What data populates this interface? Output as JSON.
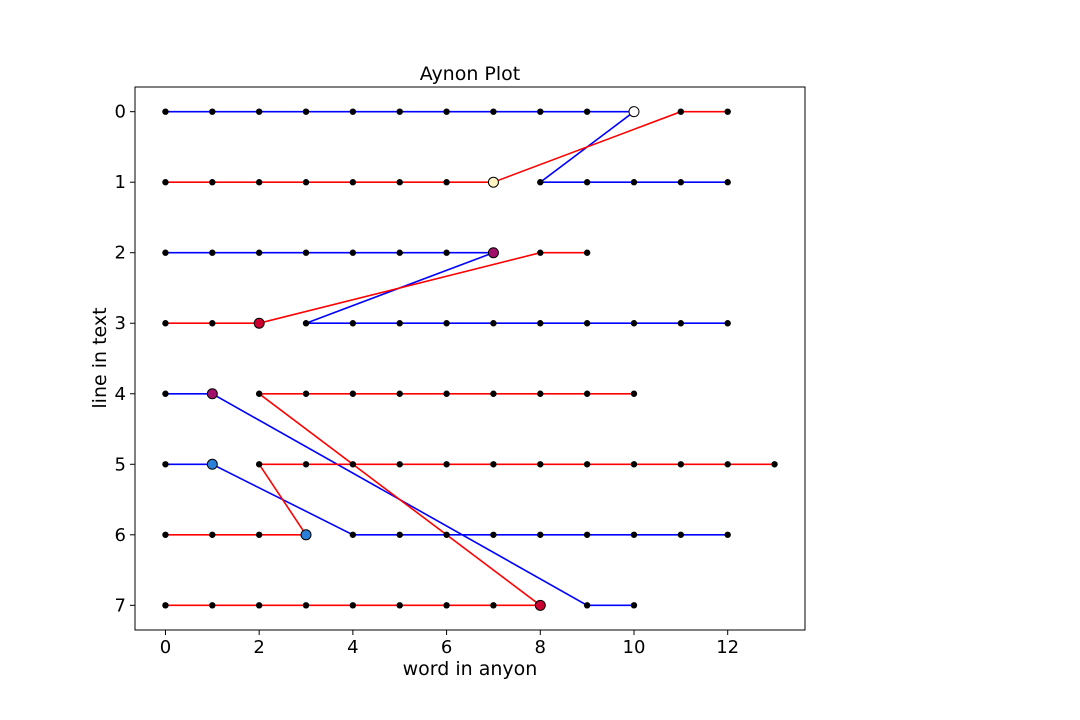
{
  "chart_data": {
    "type": "line",
    "title": "Aynon Plot",
    "xlabel": "word in anyon",
    "ylabel": "line in text",
    "xlim": [
      -0.65,
      13.65
    ],
    "ylim": [
      7.35,
      -0.35
    ],
    "y_inverted": true,
    "xticks": [
      0,
      2,
      4,
      6,
      8,
      10,
      12
    ],
    "yticks": [
      0,
      1,
      2,
      3,
      4,
      5,
      6,
      7
    ],
    "grid": false,
    "colors": {
      "blue": "#0000ff",
      "red": "#ff0000",
      "point": "#000000"
    },
    "series": [
      {
        "color": "blue",
        "points": [
          [
            0,
            0
          ],
          [
            1,
            0
          ],
          [
            2,
            0
          ],
          [
            3,
            0
          ],
          [
            4,
            0
          ],
          [
            5,
            0
          ],
          [
            6,
            0
          ],
          [
            7,
            0
          ],
          [
            8,
            0
          ],
          [
            9,
            0
          ],
          [
            10,
            0
          ],
          [
            8,
            1
          ],
          [
            9,
            1
          ],
          [
            10,
            1
          ],
          [
            11,
            1
          ],
          [
            12,
            1
          ]
        ]
      },
      {
        "color": "red",
        "points": [
          [
            0,
            1
          ],
          [
            1,
            1
          ],
          [
            2,
            1
          ],
          [
            3,
            1
          ],
          [
            4,
            1
          ],
          [
            5,
            1
          ],
          [
            6,
            1
          ],
          [
            7,
            1
          ],
          [
            11,
            0
          ],
          [
            12,
            0
          ]
        ]
      },
      {
        "color": "blue",
        "points": [
          [
            0,
            2
          ],
          [
            1,
            2
          ],
          [
            2,
            2
          ],
          [
            3,
            2
          ],
          [
            4,
            2
          ],
          [
            5,
            2
          ],
          [
            6,
            2
          ],
          [
            7,
            2
          ],
          [
            3,
            3
          ],
          [
            4,
            3
          ],
          [
            5,
            3
          ],
          [
            6,
            3
          ],
          [
            7,
            3
          ],
          [
            8,
            3
          ],
          [
            9,
            3
          ],
          [
            10,
            3
          ],
          [
            11,
            3
          ],
          [
            12,
            3
          ]
        ]
      },
      {
        "color": "red",
        "points": [
          [
            0,
            3
          ],
          [
            1,
            3
          ],
          [
            2,
            3
          ],
          [
            8,
            2
          ],
          [
            9,
            2
          ]
        ]
      },
      {
        "color": "blue",
        "points": [
          [
            0,
            4
          ],
          [
            1,
            4
          ],
          [
            9,
            7
          ],
          [
            10,
            7
          ]
        ]
      },
      {
        "color": "red",
        "points": [
          [
            0,
            7
          ],
          [
            1,
            7
          ],
          [
            2,
            7
          ],
          [
            3,
            7
          ],
          [
            4,
            7
          ],
          [
            5,
            7
          ],
          [
            6,
            7
          ],
          [
            7,
            7
          ],
          [
            8,
            7
          ],
          [
            2,
            4
          ],
          [
            3,
            4
          ],
          [
            4,
            4
          ],
          [
            5,
            4
          ],
          [
            6,
            4
          ],
          [
            7,
            4
          ],
          [
            8,
            4
          ],
          [
            9,
            4
          ],
          [
            10,
            4
          ]
        ]
      },
      {
        "color": "blue",
        "points": [
          [
            0,
            5
          ],
          [
            1,
            5
          ],
          [
            4,
            6
          ],
          [
            5,
            6
          ],
          [
            6,
            6
          ],
          [
            7,
            6
          ],
          [
            8,
            6
          ],
          [
            9,
            6
          ],
          [
            10,
            6
          ],
          [
            11,
            6
          ],
          [
            12,
            6
          ]
        ]
      },
      {
        "color": "red",
        "points": [
          [
            0,
            6
          ],
          [
            1,
            6
          ],
          [
            2,
            6
          ],
          [
            3,
            6
          ],
          [
            2,
            5
          ],
          [
            3,
            5
          ],
          [
            4,
            5
          ],
          [
            5,
            5
          ],
          [
            6,
            5
          ],
          [
            7,
            5
          ],
          [
            8,
            5
          ],
          [
            9,
            5
          ],
          [
            10,
            5
          ],
          [
            11,
            5
          ],
          [
            12,
            5
          ],
          [
            13,
            5
          ]
        ]
      }
    ],
    "markers": [
      {
        "x": 10,
        "y": 0,
        "color": "#ffffff"
      },
      {
        "x": 7,
        "y": 1,
        "color": "#fff2c4"
      },
      {
        "x": 7,
        "y": 2,
        "color": "#a0106a"
      },
      {
        "x": 2,
        "y": 3,
        "color": "#cc0030"
      },
      {
        "x": 1,
        "y": 4,
        "color": "#a0106a"
      },
      {
        "x": 1,
        "y": 5,
        "color": "#2a80d8"
      },
      {
        "x": 3,
        "y": 6,
        "color": "#2a80d8"
      },
      {
        "x": 8,
        "y": 7,
        "color": "#cc0030"
      }
    ]
  }
}
